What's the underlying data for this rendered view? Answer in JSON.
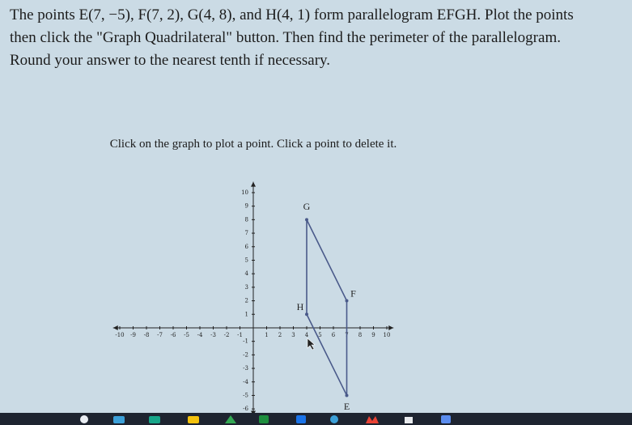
{
  "problem": {
    "lines": [
      "The points E(7, −5), F(7, 2), G(4, 8), and H(4, 1) form parallelogram EFGH. Plot the points",
      "then click the \"Graph Quadrilateral\" button. Then find the perimeter of the parallelogram.",
      "Round your answer to the nearest tenth if necessary."
    ]
  },
  "instruction": "Click on the graph to plot a point. Click a point to delete it.",
  "graph": {
    "xlim": [
      -10.5,
      10.5
    ],
    "ylim": [
      -6.5,
      10.8
    ],
    "xticks": [
      -10,
      -9,
      -8,
      -7,
      -6,
      -5,
      -4,
      -3,
      -2,
      -1,
      1,
      2,
      3,
      4,
      5,
      6,
      7,
      8,
      9,
      10
    ],
    "yticks": [
      -6,
      -5,
      -4,
      -3,
      -2,
      -1,
      1,
      2,
      3,
      4,
      5,
      6,
      7,
      8,
      9,
      10
    ],
    "points": [
      {
        "label": "E",
        "x": 7,
        "y": -5
      },
      {
        "label": "F",
        "x": 7,
        "y": 2
      },
      {
        "label": "G",
        "x": 4,
        "y": 8
      },
      {
        "label": "H",
        "x": 4,
        "y": 1
      }
    ]
  }
}
